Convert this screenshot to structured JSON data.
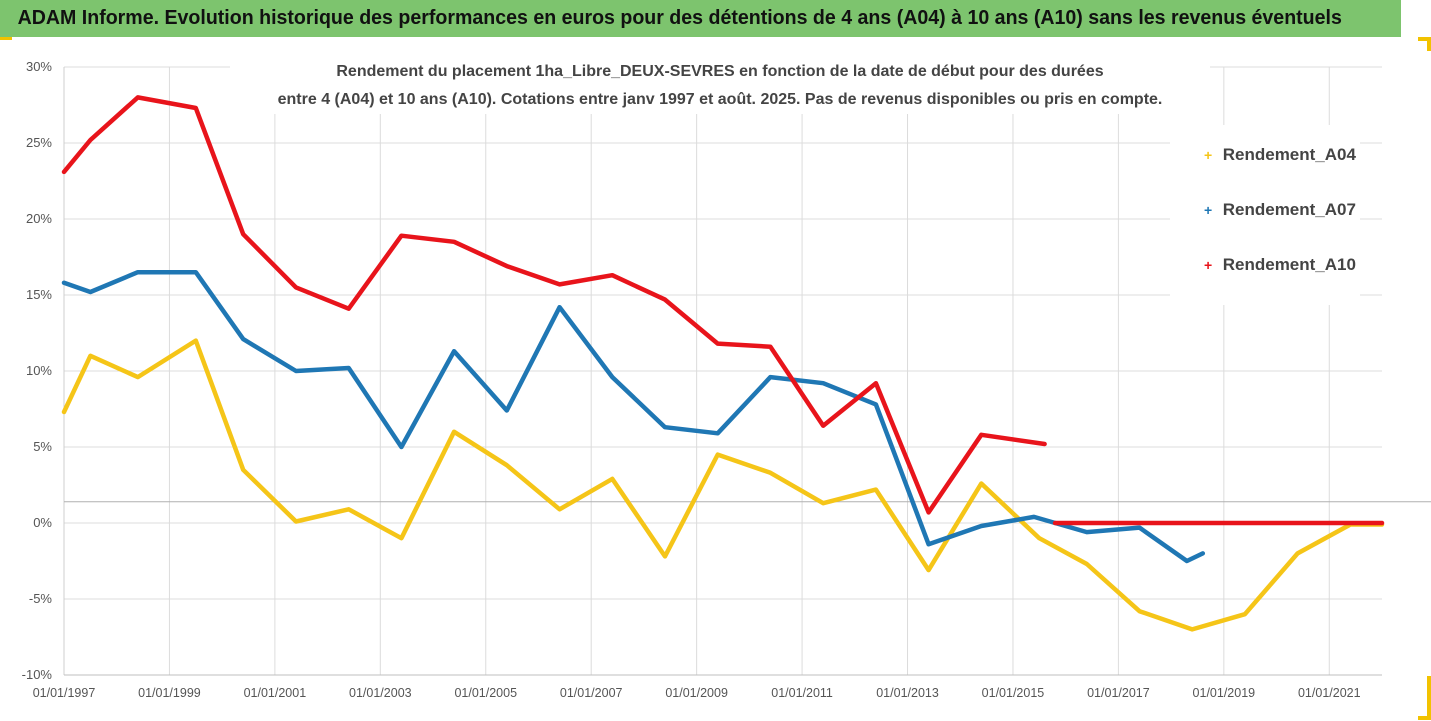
{
  "banner": {
    "title": "ADAM Informe. Evolution historique des performances en euros pour des détentions de 4 ans (A04) à 10 ans (A10) sans les revenus éventuels"
  },
  "colors": {
    "banner_bg": "#7dc46e",
    "accent_corner": "#f2c200",
    "A04": "#f5c518",
    "A07": "#1f77b4",
    "A10": "#e8141b"
  },
  "chart_data": {
    "type": "line",
    "title_lines": [
      "Rendement du placement 1ha_Libre_DEUX-SEVRES en fonction de la date de début pour des durées",
      "entre 4 (A04) et 10 ans (A10). Cotations entre janv 1997 et août. 2025. Pas de revenus disponibles ou pris en compte."
    ],
    "xlabel": "",
    "ylabel": "",
    "y_tick_labels": [
      "30%",
      "25%",
      "20%",
      "15%",
      "10%",
      "5%",
      "0%",
      "-5%",
      "-10%"
    ],
    "y_ticks": [
      30,
      25,
      20,
      15,
      10,
      5,
      0,
      -5,
      -10
    ],
    "ylim": [
      -10,
      30
    ],
    "x_tick_labels": [
      "01/01/1997",
      "01/01/1999",
      "01/01/2001",
      "01/01/2003",
      "01/01/2005",
      "01/01/2007",
      "01/01/2009",
      "01/01/2011",
      "01/01/2013",
      "01/01/2015",
      "01/01/2017",
      "01/01/2019",
      "01/01/2021"
    ],
    "x_ticks": [
      1997,
      1999,
      2001,
      2003,
      2005,
      2007,
      2009,
      2011,
      2013,
      2015,
      2017,
      2019,
      2021
    ],
    "xlim": [
      1997,
      2022
    ],
    "grid": true,
    "legend_position": "right",
    "series": [
      {
        "name": "Rendement_A04",
        "color": "#f5c518",
        "points": [
          [
            1997.0,
            7.3
          ],
          [
            1997.5,
            11.0
          ],
          [
            1998.4,
            9.6
          ],
          [
            1999.5,
            12.0
          ],
          [
            2000.4,
            3.5
          ],
          [
            2001.4,
            0.1
          ],
          [
            2002.4,
            0.9
          ],
          [
            2003.4,
            -1.0
          ],
          [
            2004.4,
            6.0
          ],
          [
            2005.4,
            3.8
          ],
          [
            2006.4,
            0.9
          ],
          [
            2007.4,
            2.9
          ],
          [
            2008.4,
            -2.2
          ],
          [
            2009.4,
            4.5
          ],
          [
            2010.4,
            3.3
          ],
          [
            2011.4,
            1.3
          ],
          [
            2012.4,
            2.2
          ],
          [
            2013.4,
            -3.1
          ],
          [
            2014.4,
            2.6
          ],
          [
            2015.5,
            -1.0
          ],
          [
            2016.4,
            -2.7
          ],
          [
            2017.4,
            -5.8
          ],
          [
            2018.4,
            -7.0
          ],
          [
            2019.4,
            -6.0
          ],
          [
            2020.4,
            -2.0
          ],
          [
            2021.4,
            -0.1
          ],
          [
            2022.0,
            -0.1
          ]
        ]
      },
      {
        "name": "Rendement_A07",
        "color": "#1f77b4",
        "points": [
          [
            1997.0,
            15.8
          ],
          [
            1997.5,
            15.2
          ],
          [
            1998.4,
            16.5
          ],
          [
            1999.5,
            16.5
          ],
          [
            2000.4,
            12.1
          ],
          [
            2001.4,
            10.0
          ],
          [
            2002.4,
            10.2
          ],
          [
            2003.4,
            5.0
          ],
          [
            2004.4,
            11.3
          ],
          [
            2005.4,
            7.4
          ],
          [
            2006.4,
            14.2
          ],
          [
            2007.4,
            9.6
          ],
          [
            2008.4,
            6.3
          ],
          [
            2009.4,
            5.9
          ],
          [
            2010.4,
            9.6
          ],
          [
            2011.4,
            9.2
          ],
          [
            2012.4,
            7.8
          ],
          [
            2013.4,
            -1.4
          ],
          [
            2014.4,
            -0.2
          ],
          [
            2015.4,
            0.4
          ],
          [
            2016.4,
            -0.6
          ],
          [
            2017.4,
            -0.3
          ],
          [
            2018.3,
            -2.5
          ],
          [
            2018.6,
            -2.0
          ]
        ]
      },
      {
        "name": "Rendement_A10",
        "color": "#e8141b",
        "points": [
          [
            1997.0,
            23.1
          ],
          [
            1997.5,
            25.2
          ],
          [
            1998.4,
            28.0
          ],
          [
            1999.5,
            27.3
          ],
          [
            2000.4,
            19.0
          ],
          [
            2001.4,
            15.5
          ],
          [
            2002.4,
            14.1
          ],
          [
            2003.4,
            18.9
          ],
          [
            2004.4,
            18.5
          ],
          [
            2005.4,
            16.9
          ],
          [
            2006.4,
            15.7
          ],
          [
            2007.4,
            16.3
          ],
          [
            2008.4,
            14.7
          ],
          [
            2009.4,
            11.8
          ],
          [
            2010.4,
            11.6
          ],
          [
            2011.4,
            6.4
          ],
          [
            2012.4,
            9.2
          ],
          [
            2013.4,
            0.7
          ],
          [
            2014.4,
            5.8
          ],
          [
            2015.6,
            5.2
          ]
        ]
      },
      {
        "name": "Rendement_A10",
        "color": "#e8141b",
        "points": [
          [
            2015.8,
            0.0
          ],
          [
            2022.0,
            0.0
          ]
        ]
      }
    ]
  }
}
